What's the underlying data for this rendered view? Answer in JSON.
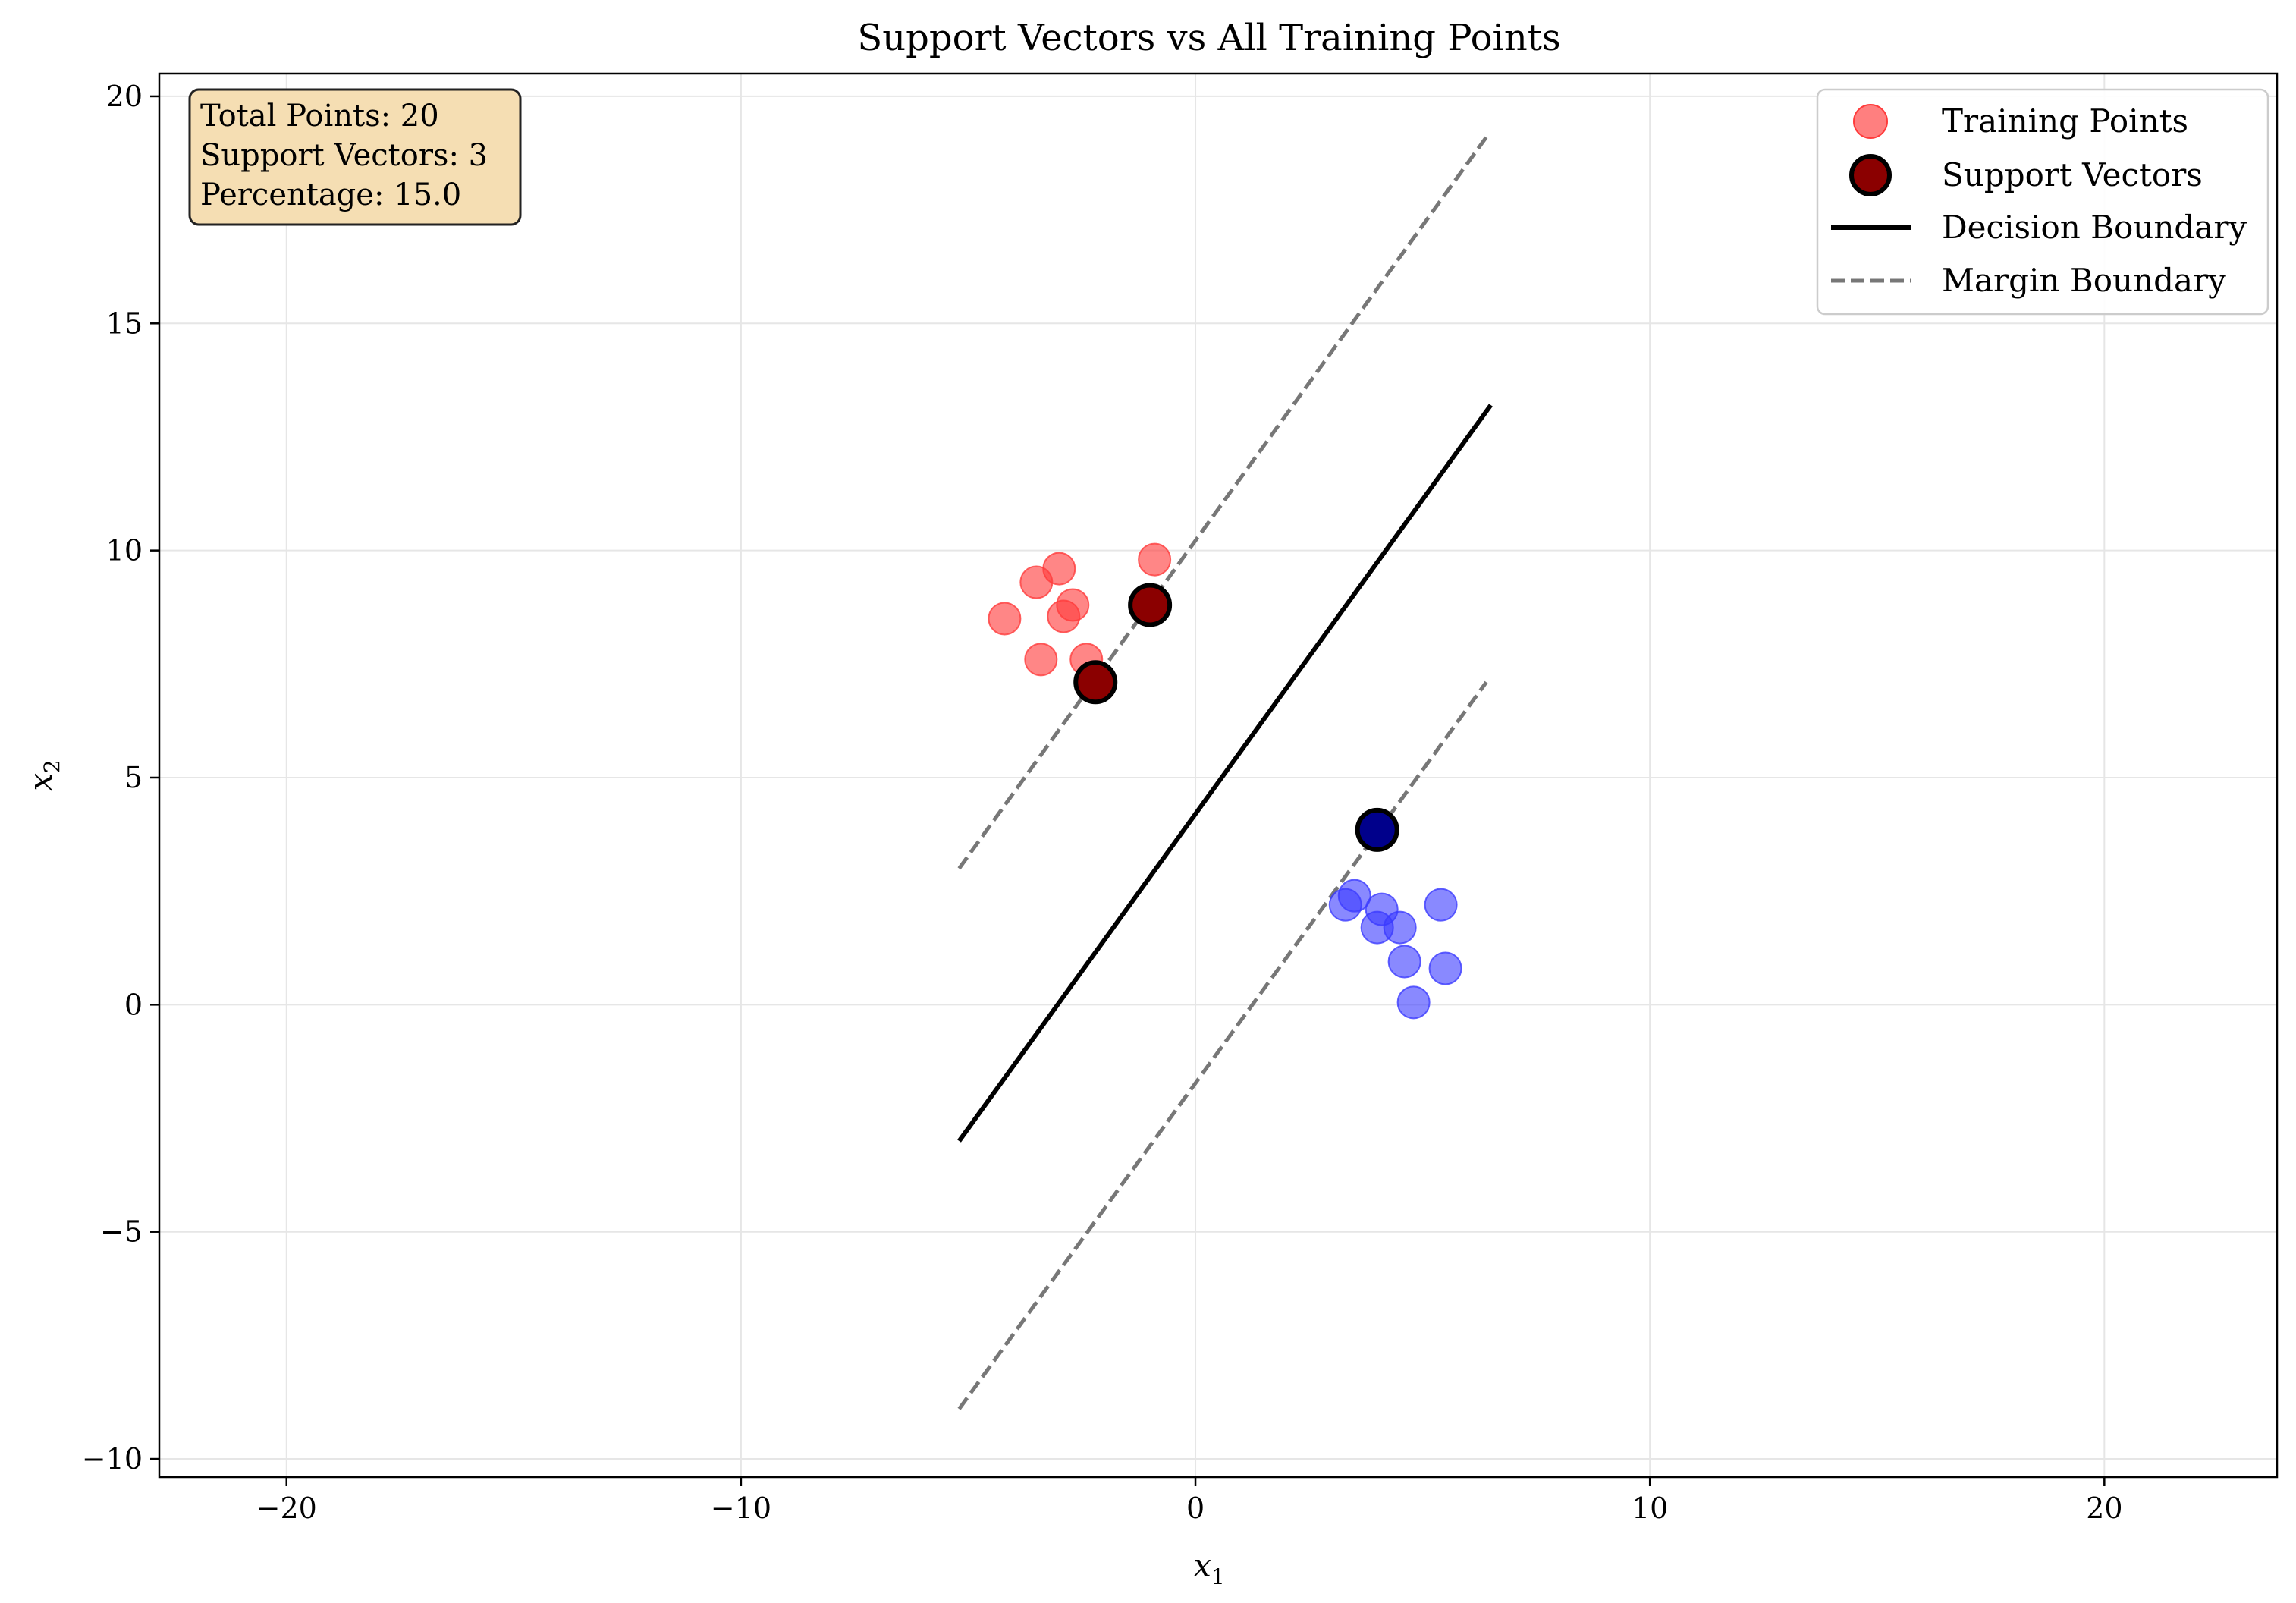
{
  "chart_data": {
    "type": "scatter",
    "title": "Support Vectors vs All Training Points",
    "xlabel": "x",
    "xlabel_sub": "1",
    "ylabel": "x",
    "ylabel_sub": "2",
    "xlim": [
      -22.8,
      23.8
    ],
    "ylim": [
      -10.4,
      20.5
    ],
    "xticks": [
      -20,
      -10,
      0,
      10,
      20
    ],
    "xtick_labels": [
      "−20",
      "−10",
      "0",
      "10",
      "20"
    ],
    "yticks": [
      -10,
      -5,
      0,
      5,
      10,
      15,
      20
    ],
    "ytick_labels": [
      "−10",
      "−5",
      "0",
      "5",
      "10",
      "15",
      "20"
    ],
    "grid": true,
    "legend_position": "top-right",
    "stats_box": {
      "lines": [
        "Total Points: 20",
        "Support Vectors: 3",
        "Percentage: 15.0"
      ]
    },
    "training_points": {
      "name": "Training Points",
      "class_a": [
        {
          "x": -4.2,
          "y": 8.5
        },
        {
          "x": -3.5,
          "y": 9.3
        },
        {
          "x": -3.0,
          "y": 9.6
        },
        {
          "x": -2.7,
          "y": 8.8
        },
        {
          "x": -2.9,
          "y": 8.55
        },
        {
          "x": -3.4,
          "y": 7.6
        },
        {
          "x": -2.4,
          "y": 7.6
        },
        {
          "x": -0.9,
          "y": 9.8
        },
        {
          "x": -1.0,
          "y": 8.8
        },
        {
          "x": -2.2,
          "y": 7.1
        }
      ],
      "class_b": [
        {
          "x": 3.3,
          "y": 2.2
        },
        {
          "x": 3.5,
          "y": 2.4
        },
        {
          "x": 4.1,
          "y": 2.1
        },
        {
          "x": 4.0,
          "y": 1.7
        },
        {
          "x": 4.5,
          "y": 1.7
        },
        {
          "x": 5.4,
          "y": 2.2
        },
        {
          "x": 4.6,
          "y": 0.95
        },
        {
          "x": 5.5,
          "y": 0.8
        },
        {
          "x": 4.8,
          "y": 0.05
        },
        {
          "x": 4.0,
          "y": 3.85
        }
      ]
    },
    "support_vectors": {
      "name": "Support Vectors",
      "points": [
        {
          "x": -1.0,
          "y": 8.8,
          "class": "a"
        },
        {
          "x": -2.2,
          "y": 7.1,
          "class": "a"
        },
        {
          "x": 4.0,
          "y": 3.85,
          "class": "b"
        }
      ]
    },
    "lines": [
      {
        "name": "Decision Boundary",
        "style": "solid",
        "color": "#000000",
        "points": [
          [
            -5.2,
            -3.0
          ],
          [
            6.5,
            13.2
          ]
        ]
      },
      {
        "name": "Margin Boundary",
        "style": "dashed",
        "color": "#777777",
        "points": [
          [
            -5.2,
            3.0
          ],
          [
            6.4,
            19.1
          ]
        ]
      },
      {
        "name": "Margin Boundary",
        "style": "dashed",
        "color": "#777777",
        "points": [
          [
            -5.2,
            -8.9
          ],
          [
            6.4,
            7.1
          ]
        ]
      }
    ],
    "legend": [
      {
        "label": "Training Points",
        "kind": "point-light"
      },
      {
        "label": "Support Vectors",
        "kind": "point-sv"
      },
      {
        "label": "Decision Boundary",
        "kind": "line-solid"
      },
      {
        "label": "Margin Boundary",
        "kind": "line-dashed"
      }
    ],
    "colors": {
      "class_a_point": "#ff3b3b",
      "class_b_point": "#3b3bff",
      "class_a_sv": "#8b0000",
      "class_b_sv": "#00008b",
      "sv_edge": "#000000",
      "stats_box_fill": "#f5deb3",
      "grid": "#e6e6e6"
    }
  }
}
